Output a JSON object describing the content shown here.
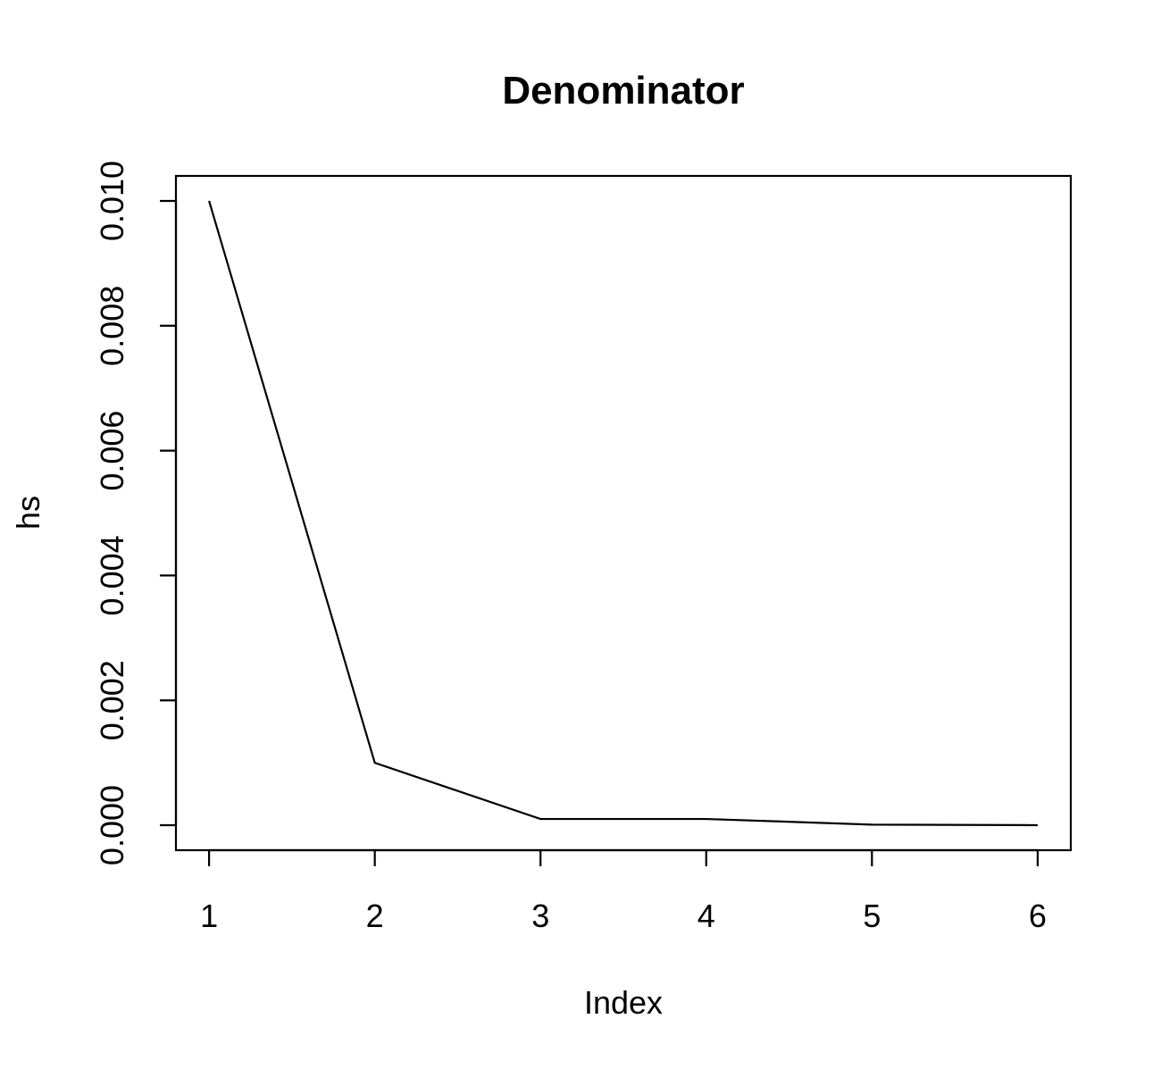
{
  "chart_data": {
    "type": "line",
    "title": "Denominator",
    "xlabel": "Index",
    "ylabel": "hs",
    "x": [
      1,
      2,
      3,
      4,
      5,
      6
    ],
    "series": [
      {
        "values": [
          0.01,
          0.001,
          0.0001,
          0.0001,
          1e-05,
          1e-06
        ]
      }
    ],
    "x_ticks": [
      "1",
      "2",
      "3",
      "4",
      "5",
      "6"
    ],
    "y_ticks": [
      "0.000",
      "0.002",
      "0.004",
      "0.006",
      "0.008",
      "0.010"
    ],
    "xlim": [
      0.8,
      6.2
    ],
    "ylim": [
      -0.0004,
      0.0104
    ],
    "grid": false,
    "line_color": "#000000"
  }
}
